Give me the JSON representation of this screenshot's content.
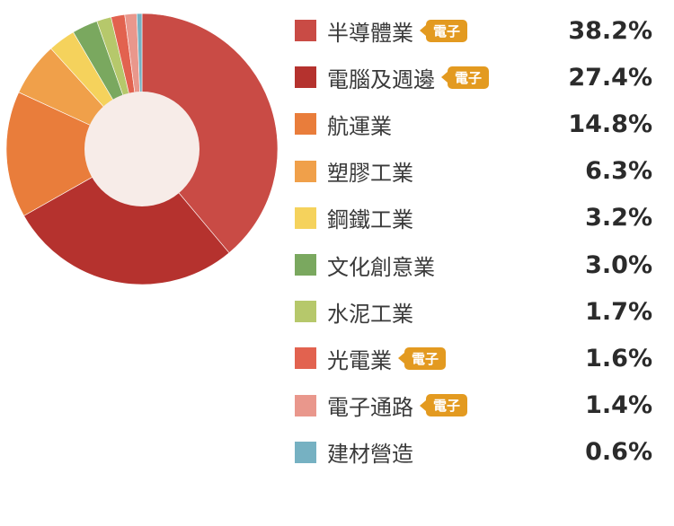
{
  "chart_data": {
    "type": "pie",
    "donut": true,
    "categories": [
      "半導體業",
      "電腦及週邊",
      "航運業",
      "塑膠工業",
      "鋼鐵工業",
      "文化創意業",
      "水泥工業",
      "光電業",
      "電子通路",
      "建材營造"
    ],
    "values": [
      38.2,
      27.4,
      14.8,
      6.3,
      3.2,
      3.0,
      1.7,
      1.6,
      1.4,
      0.6
    ],
    "value_labels": [
      "38.2%",
      "27.4%",
      "14.8%",
      "6.3%",
      "3.2%",
      "3.0%",
      "1.7%",
      "1.6%",
      "1.4%",
      "0.6%"
    ],
    "tags": [
      "電子",
      "電子",
      "",
      "",
      "",
      "",
      "",
      "電子",
      "電子",
      ""
    ],
    "colors": [
      "#c94b45",
      "#b5322e",
      "#e97d3b",
      "#f0a04a",
      "#f5d25c",
      "#7aa85f",
      "#b6c86b",
      "#e2624f",
      "#e9978c",
      "#76b1c2"
    ],
    "center_color": "#f7ece8",
    "legend_position": "right"
  }
}
